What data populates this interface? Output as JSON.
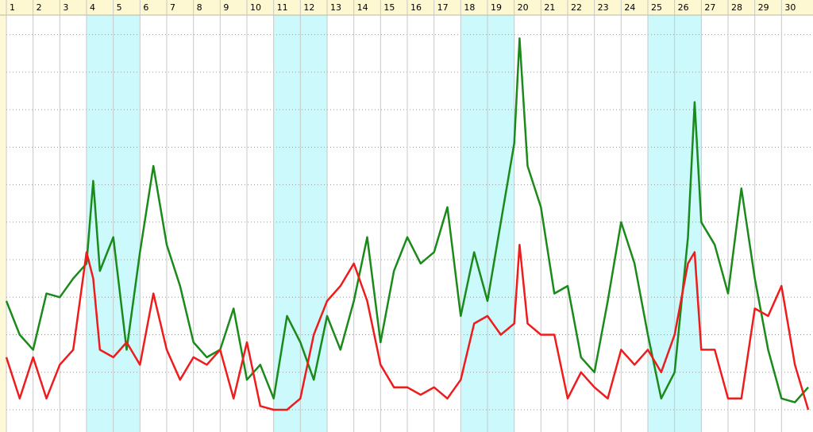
{
  "chart_data": {
    "type": "line",
    "days": [
      1,
      2,
      3,
      4,
      5,
      6,
      7,
      8,
      9,
      10,
      11,
      12,
      13,
      14,
      15,
      16,
      17,
      18,
      19,
      20,
      21,
      22,
      23,
      24,
      25,
      26,
      27,
      28,
      29,
      30
    ],
    "shaded_days": [
      4,
      5,
      11,
      12,
      18,
      19,
      25,
      26
    ],
    "shade_color": "#ccf9fb",
    "xlim": [
      1,
      31
    ],
    "ylim": [
      0,
      10.5
    ],
    "yticks": [
      0,
      1,
      2,
      3,
      4,
      5,
      6,
      7,
      8,
      9,
      10
    ],
    "grid": true,
    "x": [
      1,
      1.5,
      2,
      2.5,
      3,
      3.5,
      4,
      4.25,
      4.5,
      5,
      5.5,
      6,
      6.5,
      7,
      7.5,
      8,
      8.5,
      9,
      9.5,
      10,
      10.5,
      11,
      11.5,
      12,
      12.5,
      13,
      13.5,
      14,
      14.5,
      15,
      15.5,
      16,
      16.5,
      17,
      17.5,
      18,
      18.5,
      19,
      19.5,
      20,
      20.2,
      20.5,
      21,
      21.5,
      22,
      22.5,
      23,
      23.5,
      24,
      24.5,
      25,
      25.5,
      26,
      26.5,
      26.75,
      27,
      27.5,
      28,
      28.5,
      29,
      29.5,
      30,
      30.5,
      31
    ],
    "series": [
      {
        "color": "#1a8a1a",
        "values": [
          2.9,
          2.0,
          1.6,
          3.1,
          3.0,
          3.5,
          3.9,
          6.1,
          3.7,
          4.6,
          1.6,
          4.2,
          6.5,
          4.4,
          3.3,
          1.8,
          1.4,
          1.6,
          2.7,
          0.8,
          1.2,
          0.3,
          2.5,
          1.8,
          0.8,
          2.5,
          1.6,
          2.9,
          4.6,
          1.8,
          3.7,
          4.6,
          3.9,
          4.2,
          5.4,
          2.5,
          4.2,
          2.9,
          5.0,
          7.1,
          9.9,
          6.5,
          5.4,
          3.1,
          3.3,
          1.4,
          1.0,
          2.9,
          5.0,
          3.9,
          2.0,
          0.3,
          1.0,
          4.6,
          8.2,
          5.0,
          4.4,
          3.1,
          5.9,
          3.5,
          1.6,
          0.3,
          0.2,
          0.6
        ]
      },
      {
        "color": "#ee1c1c",
        "values": [
          1.4,
          0.3,
          1.4,
          0.3,
          1.2,
          1.6,
          4.2,
          3.5,
          1.6,
          1.4,
          1.8,
          1.2,
          3.1,
          1.6,
          0.8,
          1.4,
          1.2,
          1.6,
          0.3,
          1.8,
          0.1,
          0,
          0,
          0.3,
          2.0,
          2.9,
          3.3,
          3.9,
          2.9,
          1.2,
          0.6,
          0.6,
          0.4,
          0.6,
          0.3,
          0.8,
          2.3,
          2.5,
          2.0,
          2.3,
          4.4,
          2.3,
          2.0,
          2.0,
          0.3,
          1.0,
          0.6,
          0.3,
          1.6,
          1.2,
          1.6,
          1.0,
          2.0,
          3.9,
          4.2,
          1.6,
          1.6,
          0.3,
          0.3,
          2.7,
          2.5,
          3.3,
          1.2,
          0
        ]
      }
    ]
  }
}
